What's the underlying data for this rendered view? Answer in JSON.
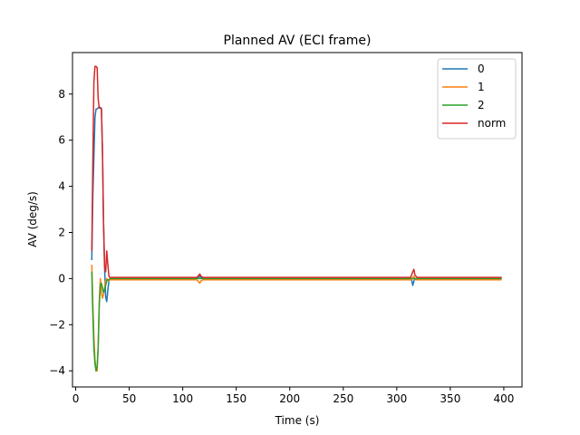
{
  "chart_data": {
    "type": "line",
    "title": "Planned AV (ECI frame)",
    "xlabel": "Time (s)",
    "ylabel": "AV (deg/s)",
    "xlim": [
      -3,
      417
    ],
    "ylim": [
      -4.7,
      9.8
    ],
    "xticks": [
      0,
      50,
      100,
      150,
      200,
      250,
      300,
      350,
      400
    ],
    "yticks": [
      -4,
      -2,
      0,
      2,
      4,
      6,
      8
    ],
    "grid": false,
    "legend_position": "top-right",
    "series": [
      {
        "name": "0",
        "color": "#1f77b4",
        "x": [
          15,
          16,
          18,
          19,
          20,
          21,
          22,
          23,
          24,
          25,
          26,
          27,
          28,
          29,
          30,
          31,
          32,
          34,
          36,
          40,
          60,
          100,
          113,
          115,
          116,
          117,
          119,
          200,
          215,
          216,
          217,
          300,
          312,
          314,
          315,
          316,
          317,
          318,
          320,
          340,
          398
        ],
        "y": [
          0.8,
          3.5,
          7.0,
          7.35,
          7.35,
          7.4,
          7.45,
          7.4,
          7.4,
          5.5,
          2.5,
          0.5,
          -0.8,
          -1.0,
          -0.5,
          -0.1,
          0.0,
          0.0,
          0.0,
          0.0,
          0.0,
          0.0,
          0.0,
          0.05,
          0.12,
          0.05,
          0.0,
          0.0,
          0.0,
          0.0,
          0.0,
          0.0,
          0.0,
          -0.1,
          -0.3,
          -0.1,
          0.0,
          0.0,
          0.0,
          0.0,
          0.0
        ]
      },
      {
        "name": "1",
        "color": "#ff7f0e",
        "x": [
          15,
          16,
          17,
          18,
          19,
          20,
          21,
          22,
          23,
          24,
          25,
          26,
          27,
          28,
          29,
          30,
          31,
          32,
          34,
          36,
          40,
          60,
          100,
          113,
          115,
          116,
          117,
          119,
          200,
          300,
          314,
          315,
          316,
          317,
          318,
          340,
          398
        ],
        "y": [
          0.6,
          -1.0,
          -2.5,
          -3.5,
          -4.0,
          -4.0,
          -3.0,
          -1.0,
          0.0,
          -0.6,
          -0.85,
          -0.7,
          -0.4,
          -0.1,
          0.0,
          -0.05,
          -0.1,
          -0.05,
          -0.05,
          -0.05,
          -0.05,
          -0.05,
          -0.05,
          -0.05,
          -0.15,
          -0.2,
          -0.1,
          -0.05,
          -0.05,
          -0.05,
          -0.05,
          0.05,
          0.1,
          0.0,
          -0.05,
          -0.05,
          -0.05
        ]
      },
      {
        "name": "2",
        "color": "#2ca02c",
        "x": [
          15,
          16,
          17,
          18,
          19,
          20,
          21,
          22,
          23,
          24,
          25,
          26,
          27,
          28,
          29,
          30,
          31,
          32,
          34,
          36,
          40,
          60,
          100,
          200,
          300,
          398
        ],
        "y": [
          0.3,
          -1.5,
          -3.0,
          -3.7,
          -4.0,
          -3.8,
          -3.0,
          -1.2,
          -0.3,
          -0.2,
          -0.4,
          -0.6,
          -0.5,
          -0.3,
          -0.1,
          -0.05,
          -0.05,
          0.0,
          0.0,
          0.0,
          0.0,
          0.0,
          0.0,
          0.0,
          0.0,
          0.0
        ]
      },
      {
        "name": "norm",
        "color": "#d62728",
        "x": [
          15,
          16,
          17,
          18,
          19,
          20,
          21,
          22,
          23,
          24,
          25,
          26,
          27,
          28,
          29,
          30,
          31,
          32,
          34,
          36,
          40,
          60,
          100,
          113,
          115,
          116,
          117,
          119,
          200,
          300,
          313,
          315,
          316,
          317,
          319,
          340,
          398
        ],
        "y": [
          1.2,
          5.0,
          8.5,
          9.2,
          9.2,
          9.15,
          7.8,
          7.4,
          7.4,
          7.35,
          5.5,
          2.5,
          0.5,
          0.3,
          1.2,
          0.6,
          0.1,
          0.05,
          0.05,
          0.05,
          0.05,
          0.05,
          0.05,
          0.05,
          0.15,
          0.2,
          0.1,
          0.05,
          0.05,
          0.05,
          0.05,
          0.3,
          0.4,
          0.15,
          0.05,
          0.05,
          0.05
        ]
      }
    ]
  }
}
